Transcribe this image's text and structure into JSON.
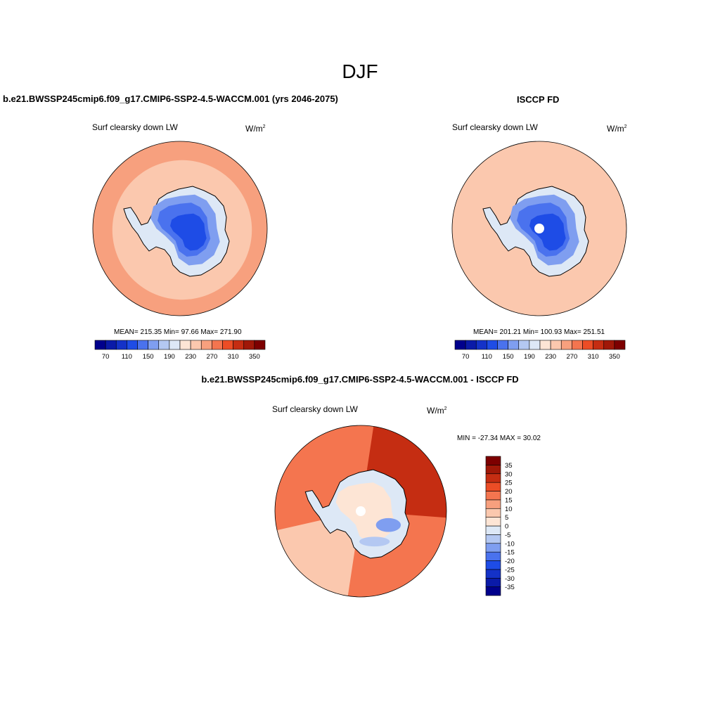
{
  "figure": {
    "title": "DJF",
    "panel_model_title": "b.e21.BWSSP245cmip6.f09_g17.CMIP6-SSP2-4.5-WACCM.001 (yrs 2046-2075)",
    "panel_obs_title": "ISCCP FD",
    "panel_diff_title": "b.e21.BWSSP245cmip6.f09_g17.CMIP6-SSP2-4.5-WACCM.001 - ISCCP FD"
  },
  "chart_data": [
    {
      "type": "heatmap",
      "projection": "south-polar-stereographic",
      "variable": "Surf clearsky down LW",
      "units": "W/m",
      "units_sup": "2",
      "stats": {
        "mean": "215.35",
        "min": "97.66",
        "max": "271.90",
        "text": "MEAN= 215.35  Min=  97.66  Max= 271.90"
      },
      "colorbar": {
        "levels": [
          70,
          90,
          110,
          130,
          150,
          170,
          190,
          210,
          230,
          250,
          270,
          290,
          310,
          330,
          350
        ],
        "tick_labels": [
          "70",
          "110",
          "150",
          "190",
          "230",
          "270",
          "310",
          "350"
        ],
        "colors": [
          "#00008c",
          "#0a1aa8",
          "#1432c8",
          "#1e4ce6",
          "#4a72ee",
          "#7f9ef0",
          "#b4c8f2",
          "#dde8f6",
          "#fde5d5",
          "#fbc8ae",
          "#f7a07e",
          "#f4754f",
          "#ec4d26",
          "#c52d12",
          "#a01808",
          "#7d0000"
        ]
      },
      "regions": [
        {
          "name": "southern ocean outer ring",
          "value": 265
        },
        {
          "name": "southern ocean inner ring",
          "value": 245
        },
        {
          "name": "coastal antarctica",
          "value": 205
        },
        {
          "name": "antarctic plateau",
          "value": 110
        }
      ]
    },
    {
      "type": "heatmap",
      "projection": "south-polar-stereographic",
      "variable": "Surf clearsky down LW",
      "units": "W/m",
      "units_sup": "2",
      "stats": {
        "mean": "201.21",
        "min": "100.93",
        "max": "251.51",
        "text": "MEAN= 201.21  Min= 100.93  Max= 251.51"
      },
      "colorbar": {
        "levels": [
          70,
          90,
          110,
          130,
          150,
          170,
          190,
          210,
          230,
          250,
          270,
          290,
          310,
          330,
          350
        ],
        "tick_labels": [
          "70",
          "110",
          "150",
          "190",
          "230",
          "270",
          "310",
          "350"
        ],
        "colors": [
          "#00008c",
          "#0a1aa8",
          "#1432c8",
          "#1e4ce6",
          "#4a72ee",
          "#7f9ef0",
          "#b4c8f2",
          "#dde8f6",
          "#fde5d5",
          "#fbc8ae",
          "#f7a07e",
          "#f4754f",
          "#ec4d26",
          "#c52d12",
          "#a01808",
          "#7d0000"
        ]
      },
      "regions": [
        {
          "name": "southern ocean outer ring",
          "value": 245
        },
        {
          "name": "southern ocean inner ring",
          "value": 235
        },
        {
          "name": "coastal antarctica",
          "value": 200
        },
        {
          "name": "antarctic plateau",
          "value": 110
        },
        {
          "name": "pole (missing)",
          "value": null
        }
      ]
    },
    {
      "type": "heatmap",
      "projection": "south-polar-stereographic",
      "variable": "Surf clearsky down LW",
      "units": "W/m",
      "units_sup": "2",
      "stats": {
        "min": "-27.34",
        "max": "30.02",
        "text": "MIN = -27.34 MAX =  30.02"
      },
      "colorbar": {
        "levels": [
          -35,
          -30,
          -25,
          -20,
          -15,
          -10,
          -5,
          0,
          5,
          10,
          15,
          20,
          25,
          30,
          35
        ],
        "tick_labels": [
          "35",
          "30",
          "25",
          "20",
          "15",
          "10",
          "5",
          "0",
          "-5",
          "-10",
          "-15",
          "-20",
          "-25",
          "-30",
          "-35"
        ],
        "colors": [
          "#00008c",
          "#0a1aa8",
          "#1432c8",
          "#1e4ce6",
          "#4a72ee",
          "#7f9ef0",
          "#b4c8f2",
          "#dde8f6",
          "#fde5d5",
          "#fbc8ae",
          "#f7a07e",
          "#f4754f",
          "#ec4d26",
          "#c52d12",
          "#a01808",
          "#7d0000"
        ]
      },
      "regions": [
        {
          "name": "southern ocean",
          "value": 18
        },
        {
          "name": "atlantic-indian sector",
          "value": 26
        },
        {
          "name": "pacific sector",
          "value": 8
        },
        {
          "name": "antarctic interior",
          "value": -3
        },
        {
          "name": "east antarctic coast",
          "value": -12
        }
      ]
    }
  ]
}
